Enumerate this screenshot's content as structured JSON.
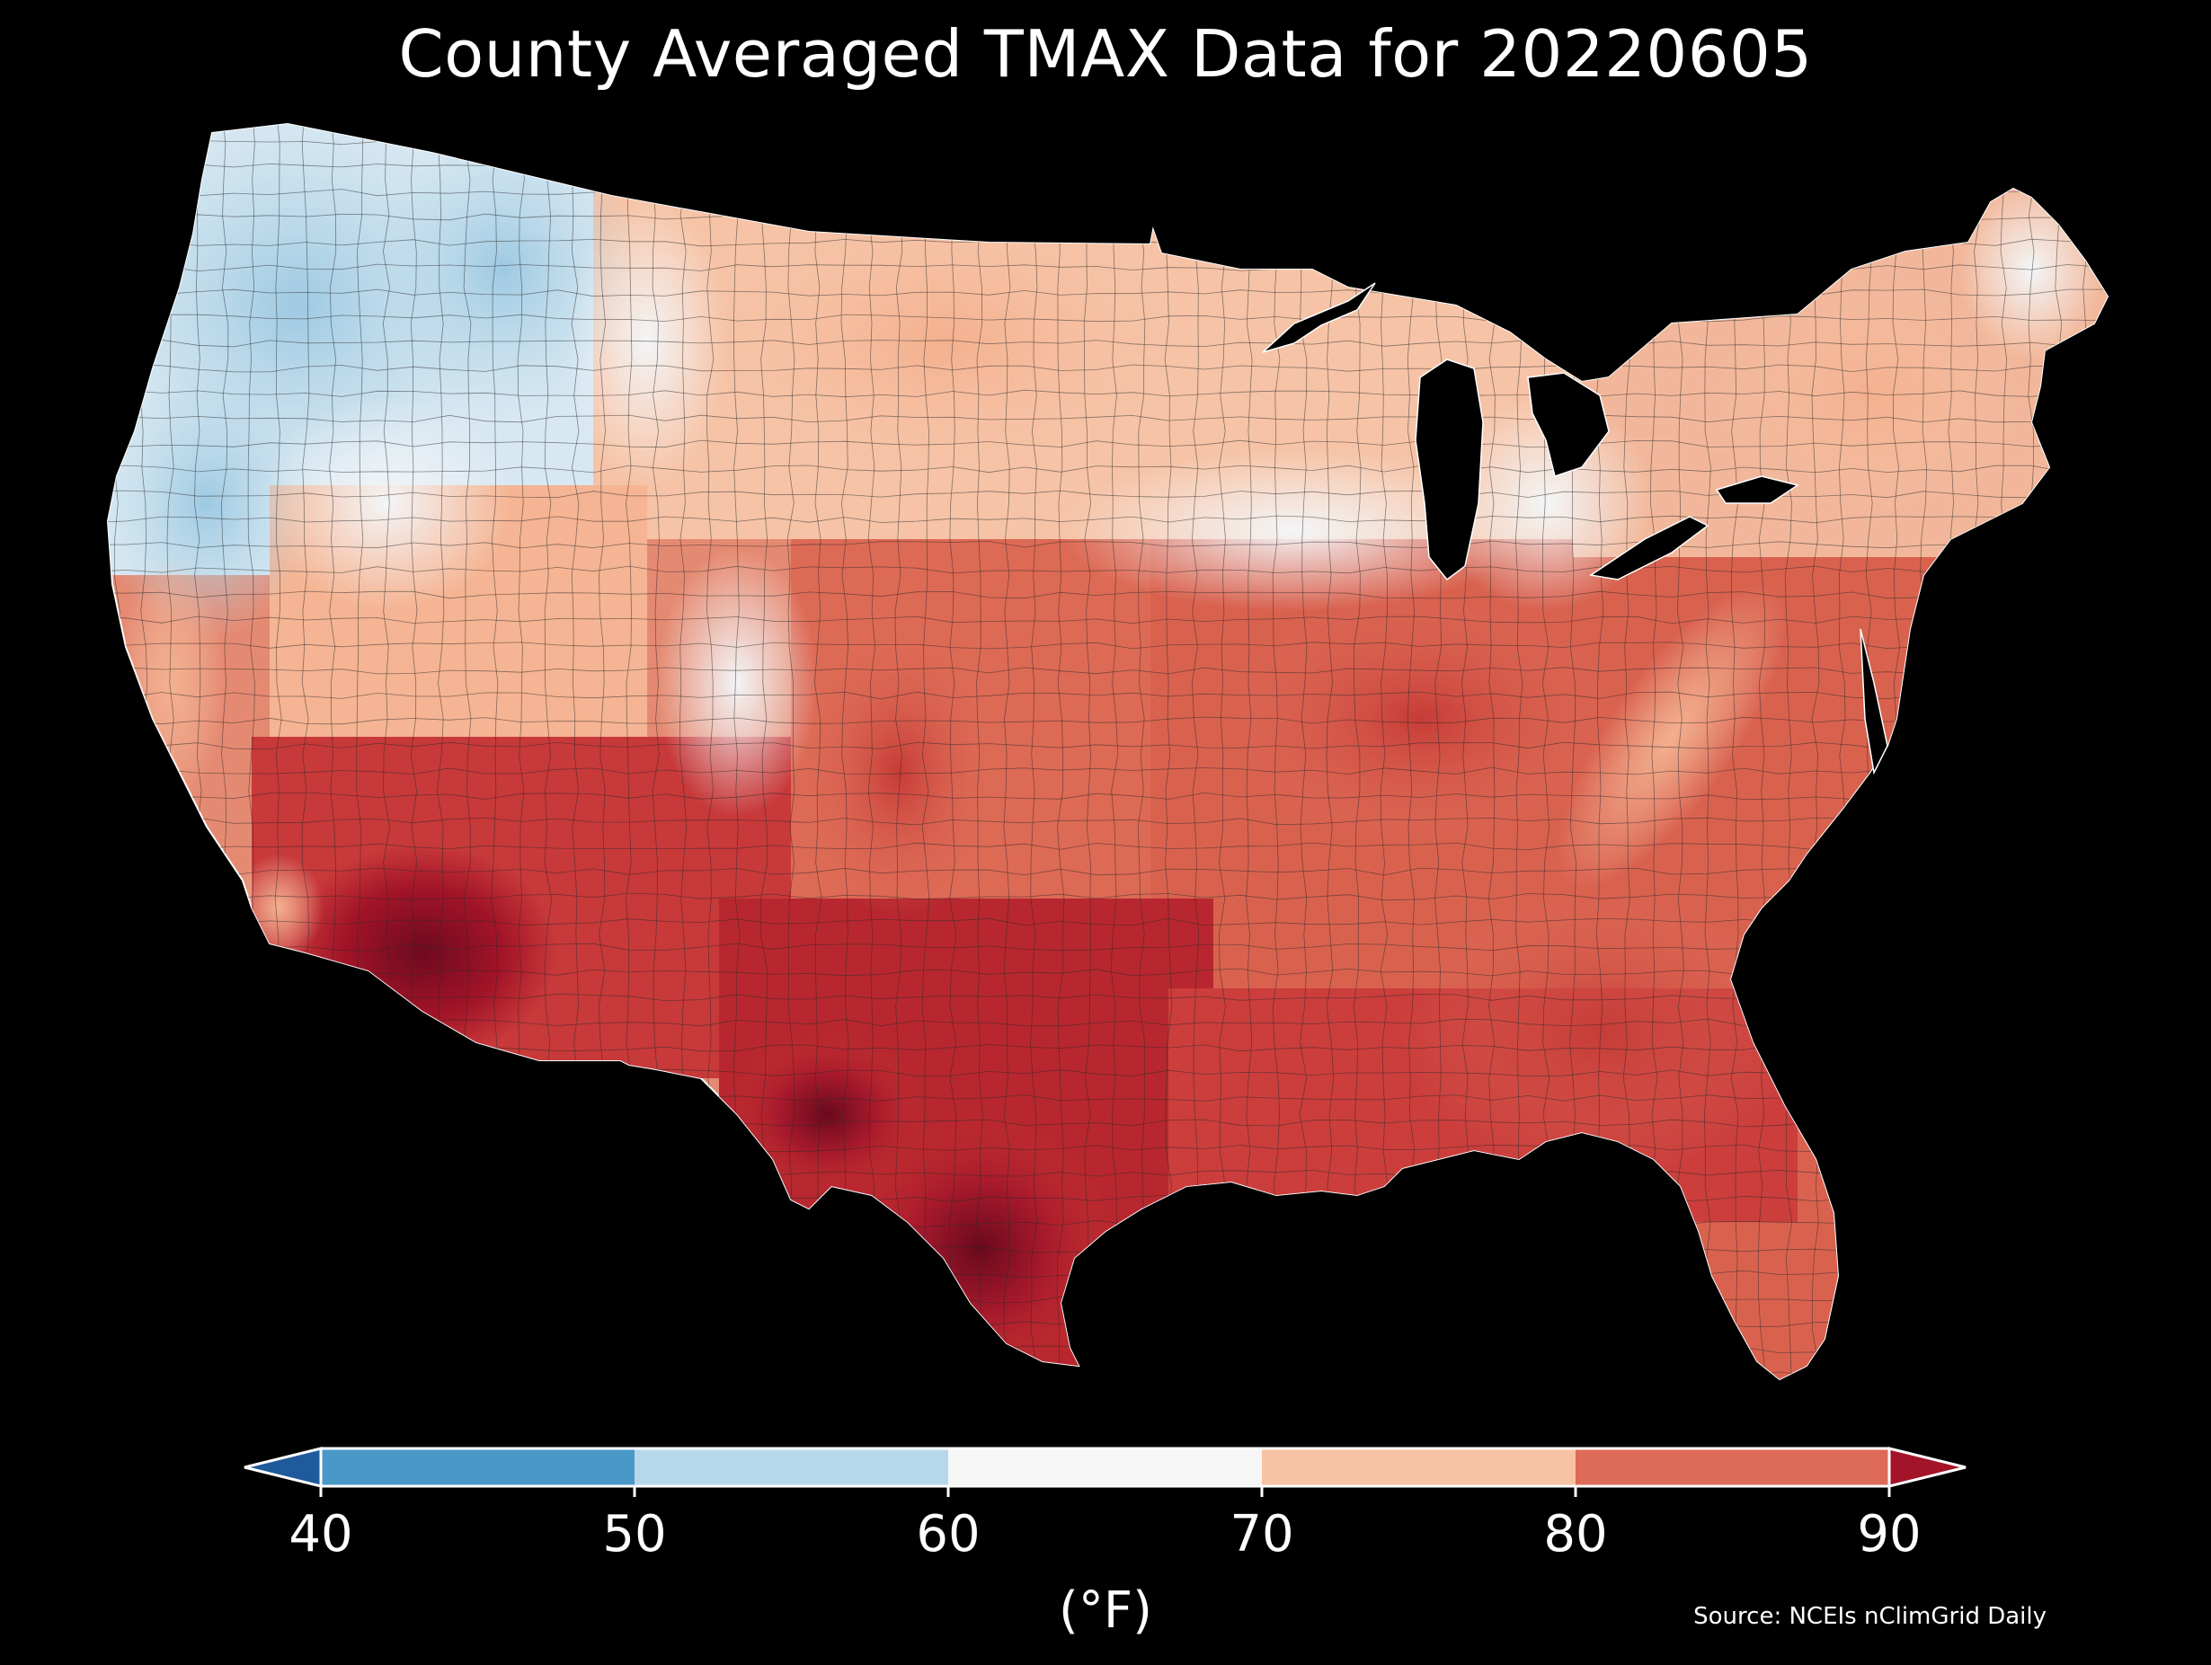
{
  "title": "County Averaged TMAX Data for 20220605",
  "colorbar": {
    "ticks": [
      "40",
      "50",
      "60",
      "70",
      "80",
      "90"
    ],
    "unit_label": "(°F)",
    "bins": [
      {
        "from": 40,
        "to": 50,
        "color": "#4a98c8"
      },
      {
        "from": 50,
        "to": 60,
        "color": "#b6d8ea"
      },
      {
        "from": 60,
        "to": 70,
        "color": "#f6f6f6"
      },
      {
        "from": 70,
        "to": 80,
        "color": "#f8c2a4"
      },
      {
        "from": 80,
        "to": 90,
        "color": "#de6a58"
      }
    ],
    "under_color": "#1f5a9c",
    "over_color": "#a31428"
  },
  "source": "Source: NCEIs nClimGrid Daily",
  "colors": {
    "background": "#000000",
    "lakes": "#000000",
    "county_lines": "#2a2a2a"
  }
}
